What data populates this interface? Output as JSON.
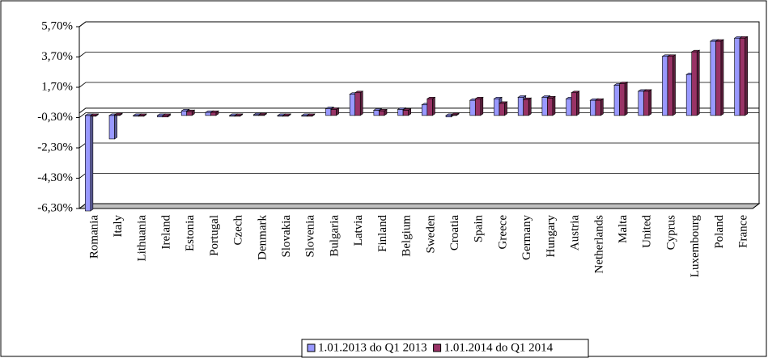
{
  "chart_data": {
    "type": "bar",
    "categories": [
      "Romania",
      "Italy",
      "Lithuania",
      "Ireland",
      "Estonia",
      "Portugal",
      "Czech",
      "Denmark",
      "Slovakia",
      "Slovenia",
      "Bulgaria",
      "Latvia",
      "Finland",
      "Belgium",
      "Sweden",
      "Croatia",
      "Spain",
      "Greece",
      "Germany",
      "Hungary",
      "Austria",
      "Netherlands",
      "Malta",
      "United",
      "Cyprus",
      "Luxembourg",
      "Poland",
      "France"
    ],
    "series": [
      {
        "name": "1.01.2013 do Q1 2013",
        "color": "#9999ff",
        "values": [
          -6.3,
          -1.55,
          0,
          -0.1,
          0.3,
          0.2,
          0,
          0.05,
          0,
          0,
          0.45,
          1.4,
          0.35,
          0.4,
          0.7,
          -0.1,
          1.0,
          1.1,
          1.2,
          1.2,
          1.1,
          1.0,
          2.0,
          1.6,
          3.9,
          2.7,
          4.9,
          5.1
        ]
      },
      {
        "name": "1.01.2014 do Q1 2014",
        "color": "#993366",
        "values": [
          0,
          0.05,
          0,
          -0.1,
          0.25,
          0.2,
          0,
          0.05,
          0,
          0,
          0.4,
          1.5,
          0.3,
          0.35,
          1.1,
          0.05,
          1.1,
          0.8,
          1.05,
          1.15,
          1.5,
          1.0,
          2.1,
          1.6,
          3.9,
          4.2,
          4.9,
          5.1
        ]
      }
    ],
    "ylim": [
      -6.3,
      5.7
    ],
    "yticks": [
      {
        "value": -6.3,
        "label": "-6,30%"
      },
      {
        "value": -4.3,
        "label": "-4,30%"
      },
      {
        "value": -2.3,
        "label": "-2,30%"
      },
      {
        "value": -0.3,
        "label": "-0,30%"
      },
      {
        "value": 1.7,
        "label": "1,70%"
      },
      {
        "value": 3.7,
        "label": "3,70%"
      },
      {
        "value": 5.7,
        "label": "5,70%"
      }
    ],
    "grid": true,
    "legend": "bottom"
  }
}
